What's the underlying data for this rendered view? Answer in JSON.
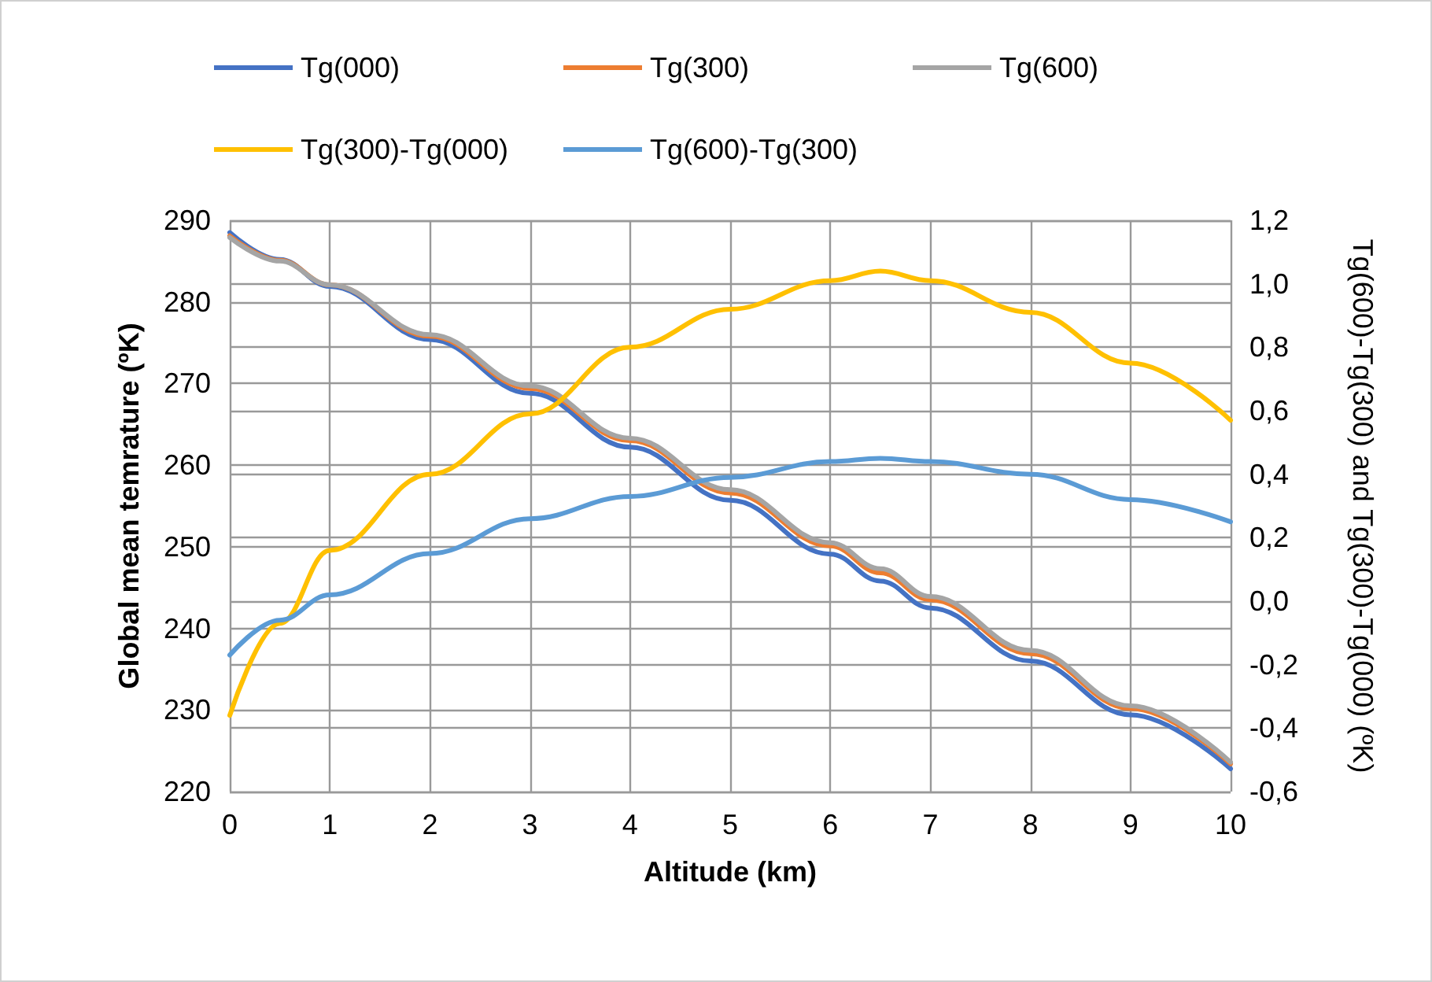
{
  "chart_data": {
    "type": "line",
    "xlabel": "Altitude (km)",
    "ylabel": "Global mean temrature (ºK)",
    "y2label": "Tg(600)-Tg(300) and Tg(300)-Tg(000) (ºK)",
    "x": [
      0,
      0.5,
      1,
      2,
      3,
      4,
      5,
      6,
      6.5,
      7,
      8,
      9,
      10
    ],
    "series": [
      {
        "name": "Tg(000)",
        "color": "#4472c4",
        "values": [
          288.5,
          285.2,
          281.9,
          275.4,
          268.8,
          262.2,
          255.7,
          249.1,
          245.8,
          242.5,
          236.0,
          229.4,
          222.8
        ]
      },
      {
        "name": "Tg(300)",
        "color": "#ed7d31",
        "values": [
          288.1,
          285.1,
          282.1,
          275.8,
          269.4,
          263.0,
          256.6,
          250.1,
          246.8,
          243.5,
          236.9,
          230.2,
          223.4
        ]
      },
      {
        "name": "Tg(600)",
        "color": "#a5a5a5",
        "values": [
          287.9,
          285.0,
          282.1,
          276.0,
          269.7,
          263.3,
          257.0,
          250.5,
          247.3,
          243.9,
          237.3,
          230.5,
          223.6
        ]
      },
      {
        "name": "Tg(300)-Tg(000)",
        "color": "#ffc000",
        "axis": "y2",
        "values": [
          -0.36,
          -0.07,
          0.16,
          0.4,
          0.59,
          0.8,
          0.92,
          1.01,
          1.04,
          1.01,
          0.91,
          0.75,
          0.57
        ]
      },
      {
        "name": "Tg(600)-Tg(300)",
        "color": "#5b9bd5",
        "axis": "y2",
        "values": [
          -0.17,
          -0.06,
          0.02,
          0.15,
          0.26,
          0.33,
          0.39,
          0.44,
          0.45,
          0.44,
          0.4,
          0.32,
          0.25
        ]
      }
    ],
    "xlim": [
      0,
      10
    ],
    "xticks": [
      0,
      1,
      2,
      3,
      4,
      5,
      6,
      7,
      8,
      9,
      10
    ],
    "ylim": [
      220,
      290
    ],
    "yticks": [
      220,
      230,
      240,
      250,
      260,
      270,
      280,
      290
    ],
    "y2lim": [
      -0.6,
      1.2
    ],
    "y2ticks": [
      {
        "value": -0.6,
        "label": "-0,6"
      },
      {
        "value": -0.4,
        "label": "-0,4"
      },
      {
        "value": -0.2,
        "label": "-0,2"
      },
      {
        "value": 0,
        "label": "0,0"
      },
      {
        "value": 0.2,
        "label": "0,2"
      },
      {
        "value": 0.4,
        "label": "0,4"
      },
      {
        "value": 0.6,
        "label": "0,6"
      },
      {
        "value": 0.8,
        "label": "0,8"
      },
      {
        "value": 1.0,
        "label": "1,0"
      },
      {
        "value": 1.2,
        "label": "1,2"
      }
    ],
    "grid": true,
    "legend": "top",
    "marker": "none",
    "line_style": "solid"
  }
}
